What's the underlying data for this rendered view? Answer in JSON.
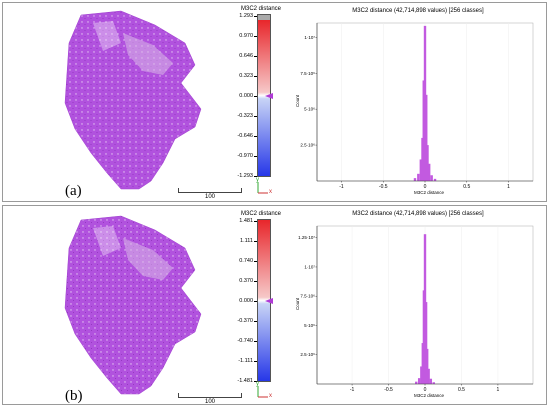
{
  "panel_a": {
    "sublabel": "(a)",
    "scale_label": "100",
    "colorbar": {
      "title": "M3C2 distance",
      "values": [
        "1.293",
        "0.970",
        "0.646",
        "0.323",
        "0.000",
        "-0.323",
        "-0.646",
        "-0.970",
        "-1.293"
      ]
    },
    "histogram": {
      "title": "M3C2 distance (42,714,898 values) [256 classes]",
      "y_axis_label": "Count",
      "x_axis_label": "M3C2 distance",
      "y_ticks": [
        "1·10⁷",
        "7.5·10⁶",
        "5·10⁶",
        "2.5·10⁶"
      ],
      "x_ticks": [
        "-1",
        "-0.5",
        "0",
        "0.5",
        "1"
      ]
    }
  },
  "panel_b": {
    "sublabel": "(b)",
    "scale_label": "100",
    "colorbar": {
      "title": "M3C2 distance",
      "values": [
        "1.481",
        "1.111",
        "0.740",
        "0.370",
        "0.000",
        "-0.370",
        "-0.740",
        "-1.111",
        "-1.481"
      ]
    },
    "histogram": {
      "title": "M3C2 distance (42,714,898 values) [256 classes]",
      "y_axis_label": "Count",
      "x_axis_label": "M3C2 distance",
      "y_ticks": [
        "1.25·10⁷",
        "1·10⁷",
        "7.5·10⁶",
        "5·10⁶",
        "2.5·10⁶"
      ],
      "x_ticks": [
        "-1",
        "-0.5",
        "0",
        "0.5",
        "1"
      ]
    }
  },
  "axis_icon": {
    "x_label": "x",
    "y_label": "y"
  },
  "colors": {
    "cloud": "#b152de",
    "hist": "#c25ae0",
    "cbar_top": "#e8262b",
    "cbar_bottom": "#2637e8"
  },
  "chart_data": [
    {
      "type": "bar",
      "title": "M3C2 distance (42,714,898 values) [256 classes]",
      "xlabel": "M3C2 distance",
      "ylabel": "Count",
      "xlim": [
        -1.293,
        1.293
      ],
      "ylim": [
        0,
        11000000
      ],
      "x": [
        -0.12,
        -0.08,
        -0.05,
        -0.03,
        -0.015,
        0,
        0.015,
        0.03,
        0.05,
        0.08,
        0.12
      ],
      "values": [
        200000,
        500000,
        1500000,
        3000000,
        7000000,
        10800000,
        6000000,
        2500000,
        1200000,
        400000,
        150000
      ]
    },
    {
      "type": "bar",
      "title": "M3C2 distance (42,714,898 values) [256 classes]",
      "xlabel": "M3C2 distance",
      "ylabel": "Count",
      "xlim": [
        -1.481,
        1.481
      ],
      "ylim": [
        0,
        13500000
      ],
      "x": [
        -0.12,
        -0.08,
        -0.05,
        -0.03,
        -0.015,
        0,
        0.015,
        0.03,
        0.05,
        0.08,
        0.12
      ],
      "values": [
        200000,
        500000,
        1500000,
        3500000,
        8000000,
        12800000,
        7000000,
        3000000,
        1300000,
        450000,
        150000
      ]
    }
  ]
}
